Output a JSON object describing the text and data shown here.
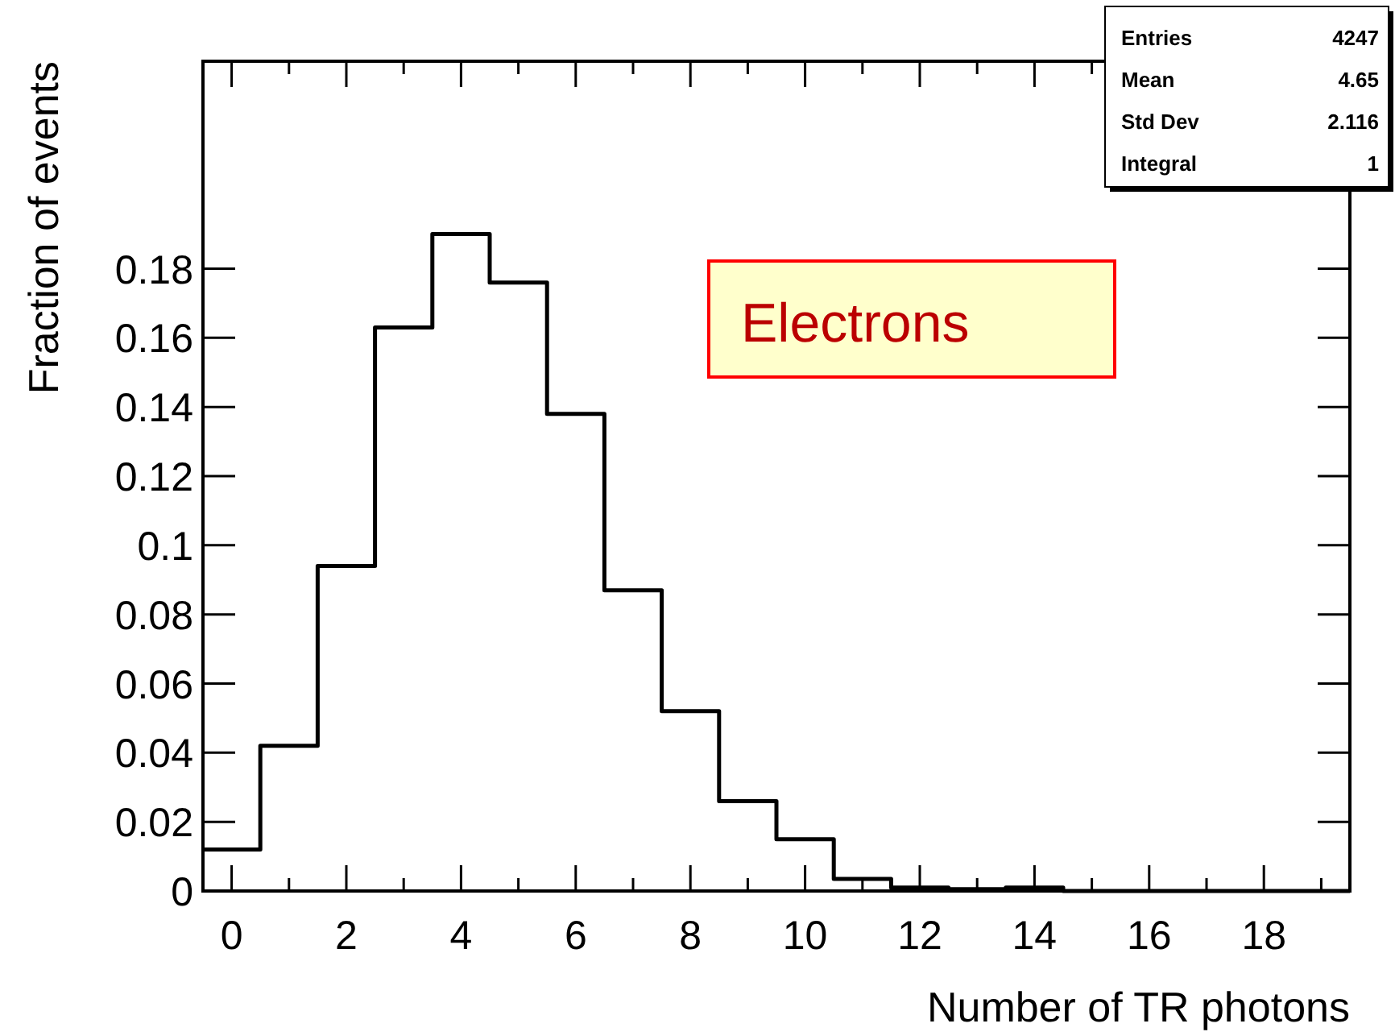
{
  "chart_data": {
    "type": "histogram",
    "xlabel": "Number of TR photons",
    "ylabel": "Fraction of events",
    "bins": [
      -0.5,
      0.5,
      1.5,
      2.5,
      3.5,
      4.5,
      5.5,
      6.5,
      7.5,
      8.5,
      9.5,
      10.5,
      11.5,
      12.5,
      13.5,
      14.5,
      15.5,
      16.5,
      17.5,
      18.5,
      19.5
    ],
    "values": [
      0.012,
      0.042,
      0.094,
      0.163,
      0.19,
      0.176,
      0.138,
      0.087,
      0.052,
      0.026,
      0.015,
      0.0035,
      0.001,
      0.0005,
      0.001,
      0,
      0,
      0,
      0,
      0
    ],
    "color": "#000000",
    "xlim": [
      -0.5,
      19.5
    ],
    "xticks": [
      0,
      {
        "value": 1,
        "label": null
      },
      2,
      {
        "value": 3,
        "label": null
      },
      4,
      {
        "value": 5,
        "label": null
      },
      6,
      {
        "value": 7,
        "label": null
      },
      8,
      {
        "value": 9,
        "label": null
      },
      10,
      {
        "value": 11,
        "label": null
      },
      12,
      {
        "value": 13,
        "label": null
      },
      14,
      {
        "value": 15,
        "label": null
      },
      16,
      {
        "value": 17,
        "label": null
      },
      18,
      {
        "value": 19,
        "label": null
      }
    ],
    "ylim": [
      0,
      0.24
    ],
    "yticks": [
      0,
      0.02,
      0.04,
      0.06,
      0.08,
      {
        "value": 0.1,
        "label": "0.1"
      },
      0.12,
      0.14,
      0.16,
      0.18
    ],
    "annotations": [
      "Electrons",
      "Entries",
      "4247",
      "Mean",
      "4.65",
      "Std Dev",
      "2.116",
      "Integral",
      "1"
    ]
  }
}
